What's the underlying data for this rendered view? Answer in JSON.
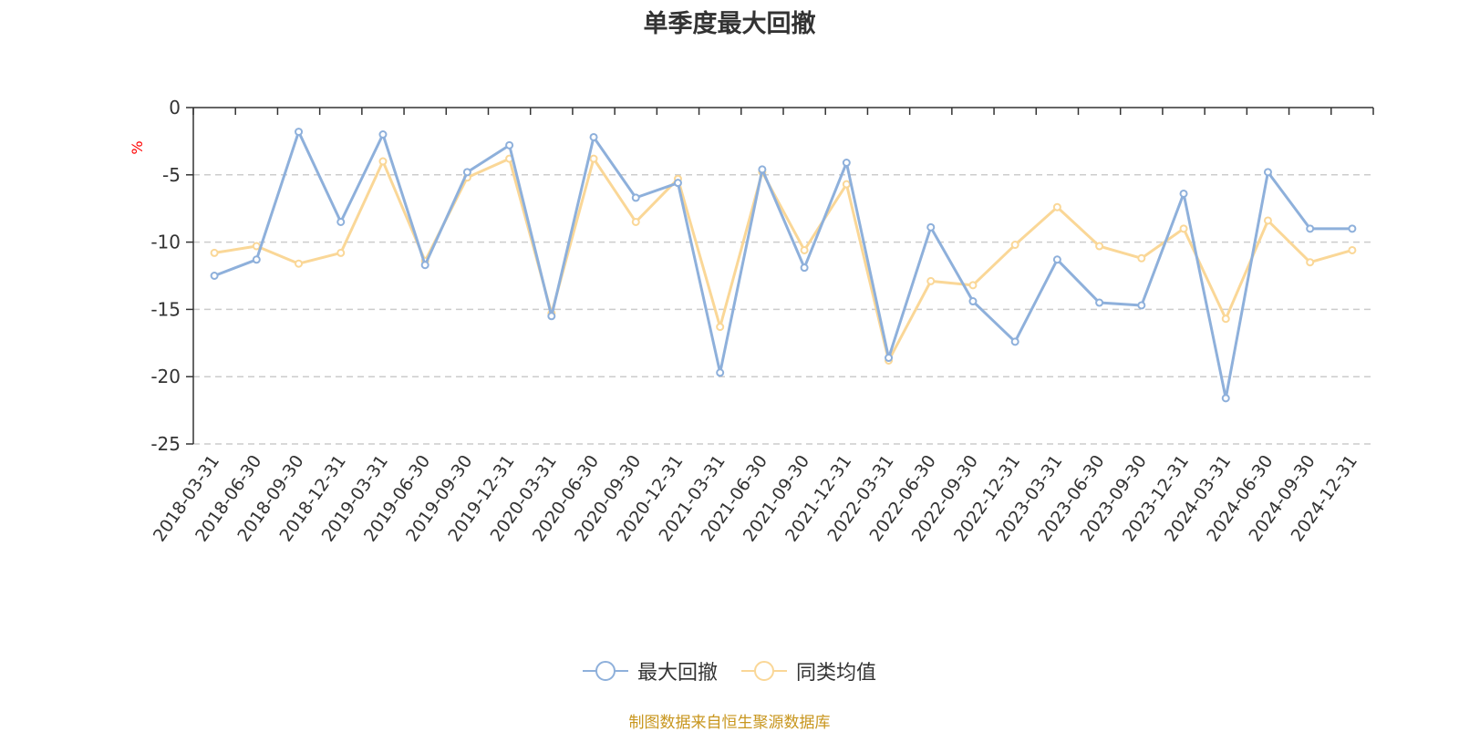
{
  "chart_data": {
    "type": "line",
    "title": "单季度最大回撤",
    "ylabel": "%",
    "xlabel": "",
    "ylim": [
      -25,
      0
    ],
    "yticks": [
      0,
      -5,
      -10,
      -15,
      -20,
      -25
    ],
    "categories": [
      "2018-03-31",
      "2018-06-30",
      "2018-09-30",
      "2018-12-31",
      "2019-03-31",
      "2019-06-30",
      "2019-09-30",
      "2019-12-31",
      "2020-03-31",
      "2020-06-30",
      "2020-09-30",
      "2020-12-31",
      "2021-03-31",
      "2021-06-30",
      "2021-09-30",
      "2021-12-31",
      "2022-03-31",
      "2022-06-30",
      "2022-09-30",
      "2022-12-31",
      "2023-03-31",
      "2023-06-30",
      "2023-09-30",
      "2023-12-31",
      "2024-03-31",
      "2024-06-30",
      "2024-09-30",
      "2024-12-31"
    ],
    "series": [
      {
        "name": "最大回撤",
        "color": "#8eb0db",
        "values": [
          -12.5,
          -11.3,
          -1.8,
          -8.5,
          -2.0,
          -11.7,
          -4.8,
          -2.8,
          -15.5,
          -2.2,
          -6.7,
          -5.6,
          -19.7,
          -4.6,
          -11.9,
          -4.1,
          -18.6,
          -8.9,
          -14.4,
          -17.4,
          -11.3,
          -14.5,
          -14.7,
          -6.4,
          -21.6,
          -4.8,
          -9.0,
          -9.0
        ]
      },
      {
        "name": "同类均值",
        "color": "#fad797",
        "values": [
          -10.8,
          -10.3,
          -11.6,
          -10.8,
          -4.0,
          -11.4,
          -5.2,
          -3.8,
          -15.3,
          -3.8,
          -8.5,
          -5.3,
          -16.3,
          -4.8,
          -10.6,
          -5.7,
          -18.8,
          -12.9,
          -13.2,
          -10.2,
          -7.4,
          -10.3,
          -11.2,
          -9.0,
          -15.7,
          -8.4,
          -11.5,
          -10.6
        ]
      }
    ]
  },
  "legend": {
    "items": [
      {
        "label": "最大回撤",
        "color": "#8eb0db"
      },
      {
        "label": "同类均值",
        "color": "#fad797"
      }
    ]
  },
  "source_note": {
    "text": "制图数据来自恒生聚源数据库",
    "color": "#c8961e"
  }
}
